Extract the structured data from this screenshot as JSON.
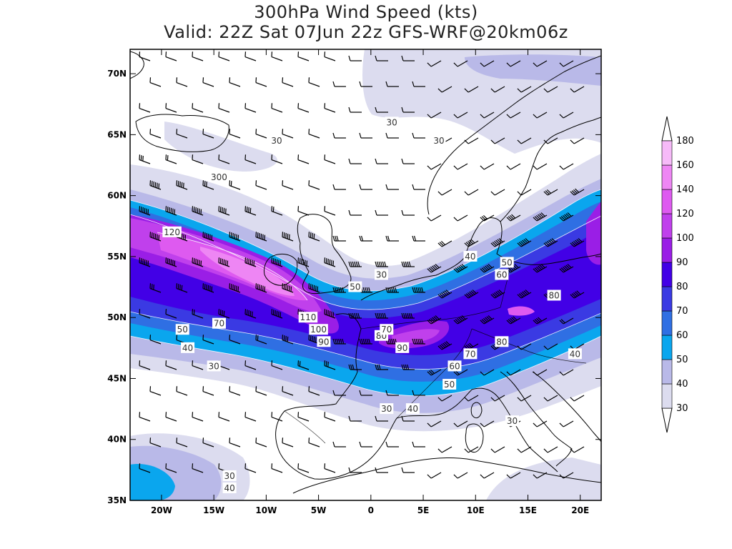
{
  "title": {
    "line1": "300hPa Wind Speed (kts)",
    "line2": "Valid: 22Z Sat 07Jun 22z GFS-WRF@20km06z"
  },
  "map": {
    "lon_range": [
      -23,
      22
    ],
    "lat_range": [
      35,
      72
    ],
    "lon_ticks": [
      {
        "value": -20,
        "label": "20W"
      },
      {
        "value": -15,
        "label": "15W"
      },
      {
        "value": -10,
        "label": "10W"
      },
      {
        "value": -5,
        "label": "5W"
      },
      {
        "value": 0,
        "label": "0"
      },
      {
        "value": 5,
        "label": "5E"
      },
      {
        "value": 10,
        "label": "10E"
      },
      {
        "value": 15,
        "label": "15E"
      },
      {
        "value": 20,
        "label": "20E"
      }
    ],
    "lat_ticks": [
      {
        "value": 35,
        "label": "35N"
      },
      {
        "value": 40,
        "label": "40N"
      },
      {
        "value": 45,
        "label": "45N"
      },
      {
        "value": 50,
        "label": "50N"
      },
      {
        "value": 55,
        "label": "55N"
      },
      {
        "value": 60,
        "label": "60N"
      },
      {
        "value": 65,
        "label": "65N"
      },
      {
        "value": 70,
        "label": "70N"
      }
    ],
    "contour_labels": [
      {
        "text": "120",
        "lon": -19.0,
        "lat": 57.0
      },
      {
        "text": "110",
        "lon": -6.0,
        "lat": 50.0
      },
      {
        "text": "100",
        "lon": -5.0,
        "lat": 49.0
      },
      {
        "text": "90",
        "lon": -4.5,
        "lat": 48.0
      },
      {
        "text": "90",
        "lon": 3.0,
        "lat": 47.5
      },
      {
        "text": "80",
        "lon": 1.0,
        "lat": 48.5
      },
      {
        "text": "80",
        "lon": 12.5,
        "lat": 48.0
      },
      {
        "text": "80",
        "lon": 17.5,
        "lat": 51.8
      },
      {
        "text": "70",
        "lon": -14.5,
        "lat": 49.5
      },
      {
        "text": "70",
        "lon": 1.5,
        "lat": 49.0
      },
      {
        "text": "70",
        "lon": 9.5,
        "lat": 47.0
      },
      {
        "text": "60",
        "lon": 8.0,
        "lat": 46.0
      },
      {
        "text": "60",
        "lon": 12.5,
        "lat": 53.5
      },
      {
        "text": "50",
        "lon": -18.0,
        "lat": 49.0
      },
      {
        "text": "50",
        "lon": -1.5,
        "lat": 52.5
      },
      {
        "text": "50",
        "lon": 13.0,
        "lat": 54.5
      },
      {
        "text": "50",
        "lon": 7.5,
        "lat": 44.5
      },
      {
        "text": "40",
        "lon": -17.5,
        "lat": 47.5
      },
      {
        "text": "40",
        "lon": 9.5,
        "lat": 55.0
      },
      {
        "text": "40",
        "lon": 19.5,
        "lat": 47.0
      },
      {
        "text": "40",
        "lon": 4.0,
        "lat": 42.5
      },
      {
        "text": "40",
        "lon": -13.5,
        "lat": 36.0
      },
      {
        "text": "30",
        "lon": -9.0,
        "lat": 64.5
      },
      {
        "text": "30",
        "lon": 2.0,
        "lat": 66.0
      },
      {
        "text": "30",
        "lon": 6.5,
        "lat": 64.5
      },
      {
        "text": "30",
        "lon": 1.0,
        "lat": 53.5
      },
      {
        "text": "30",
        "lon": -15.0,
        "lat": 46.0
      },
      {
        "text": "30",
        "lon": 1.5,
        "lat": 42.5
      },
      {
        "text": "30",
        "lon": 13.5,
        "lat": 41.5
      },
      {
        "text": "30",
        "lon": -13.5,
        "lat": 37.0
      },
      {
        "text": "300",
        "lon": -14.5,
        "lat": 61.5
      }
    ]
  },
  "colorbar": {
    "levels": [
      "30",
      "40",
      "50",
      "60",
      "70",
      "80",
      "90",
      "100",
      "120",
      "140",
      "160",
      "180"
    ],
    "colors": [
      "#dcdcef",
      "#b9b9e8",
      "#0aa6ee",
      "#2f6fe3",
      "#3a3ae3",
      "#4200e6",
      "#9a1ee6",
      "#c040ec",
      "#de5af0",
      "#ee86f4",
      "#f6baf8"
    ]
  }
}
